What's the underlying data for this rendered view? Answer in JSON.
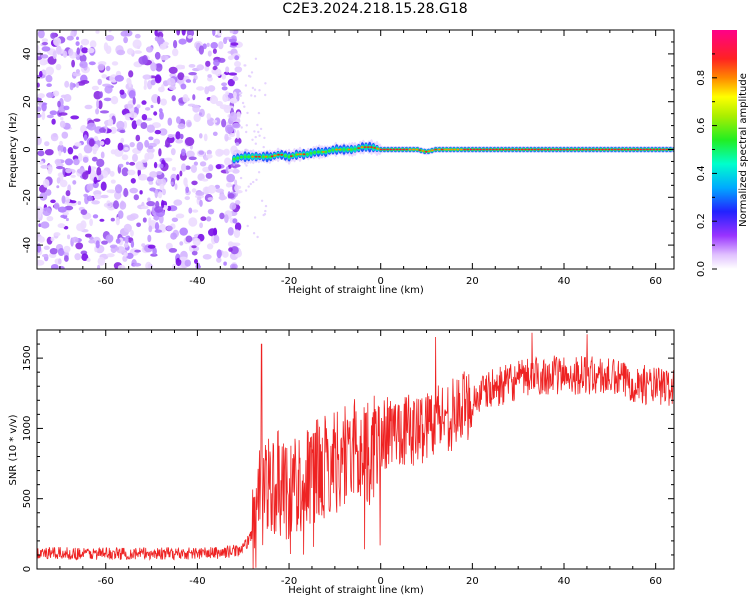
{
  "title": "C2E3.2024.218.15.28.G18",
  "colors": {
    "snr_line": "#ee2222",
    "scatter": "#8a2be2",
    "axis": "#000000"
  },
  "chart_data": [
    {
      "type": "heatmap",
      "title": "C2E3.2024.218.15.28.G18",
      "xlabel": "Height of straight line (km)",
      "ylabel": "Frequency (Hz)",
      "xlim": [
        -75,
        64
      ],
      "ylim": [
        -50,
        50
      ],
      "xticks": [
        -60,
        -40,
        -20,
        0,
        20,
        40,
        60
      ],
      "yticks": [
        -40,
        -20,
        0,
        20,
        40
      ],
      "colorbar": {
        "label": "Normalized spectral amplitude",
        "range": [
          0,
          1
        ],
        "ticks": [
          "0.0",
          "0.2",
          "0.4",
          "0.6",
          "0.8"
        ]
      },
      "noise_region": {
        "x": [
          -75,
          -31
        ],
        "y": [
          -50,
          50
        ]
      },
      "signal_ridge": {
        "x": [
          -32,
          -30,
          -28,
          -26,
          -24,
          -22,
          -20,
          -18,
          -16,
          -14,
          -12,
          -10,
          -8,
          -6,
          -4,
          -2,
          0,
          4,
          8,
          10,
          12,
          16,
          20,
          30,
          40,
          50,
          60,
          64
        ],
        "y": [
          -4,
          -3,
          -3,
          -3,
          -3,
          -2,
          -3,
          -2,
          -2,
          -1,
          -1,
          0,
          0,
          0,
          1,
          1,
          0,
          0,
          0,
          -1,
          0,
          0,
          0,
          0,
          0,
          0,
          0,
          0
        ]
      }
    },
    {
      "type": "line",
      "xlabel": "Height of straight line (km)",
      "ylabel": "SNR (10 * v/v)",
      "xlim": [
        -75,
        64
      ],
      "ylim": [
        0,
        1700
      ],
      "xticks": [
        -60,
        -40,
        -20,
        0,
        20,
        40,
        60
      ],
      "yticks": [
        0,
        500,
        1000,
        1500
      ],
      "trend": {
        "x": [
          -75,
          -60,
          -45,
          -35,
          -30,
          -28,
          -26,
          -24,
          -20,
          -16,
          -12,
          -8,
          -4,
          -2,
          0,
          4,
          8,
          12,
          16,
          20,
          24,
          28,
          32,
          36,
          40,
          44,
          48,
          52,
          56,
          60,
          64
        ],
        "y": [
          110,
          110,
          110,
          115,
          140,
          260,
          600,
          620,
          580,
          650,
          720,
          820,
          850,
          820,
          950,
          1000,
          980,
          1080,
          1100,
          1200,
          1280,
          1320,
          1360,
          1380,
          1380,
          1380,
          1370,
          1350,
          1320,
          1300,
          1290
        ]
      },
      "peaks": [
        {
          "x": -26,
          "y": 1600
        },
        {
          "x": 12,
          "y": 1650
        },
        {
          "x": 33,
          "y": 1680
        },
        {
          "x": 45,
          "y": 1670
        }
      ]
    }
  ]
}
